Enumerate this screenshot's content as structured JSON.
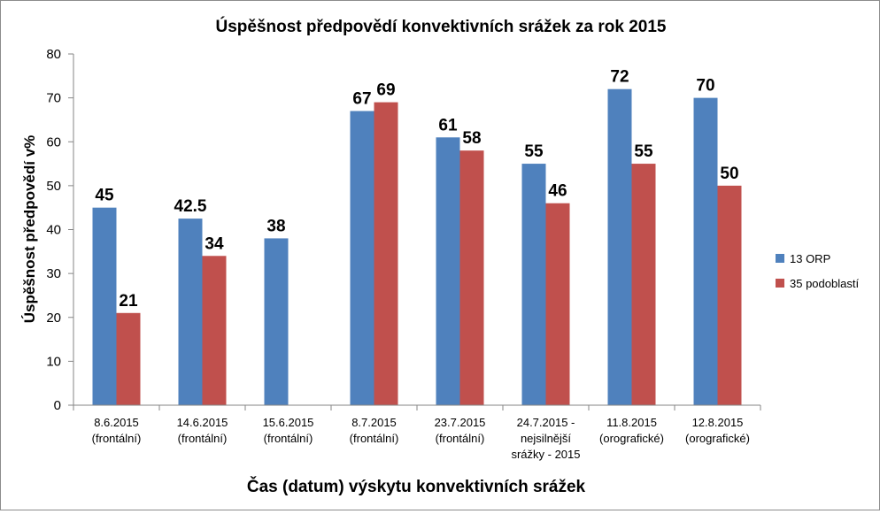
{
  "chart_data": {
    "type": "bar",
    "title": "Úspěšnost předpovědí konvektivních srážek za rok 2015",
    "xlabel": "Čas (datum) výskytu konvektivních srážek",
    "ylabel": "Úspěšnost předpovědí v%",
    "ylim": [
      0,
      80
    ],
    "yticks": [
      "0",
      "10",
      "20",
      "30",
      "40",
      "50",
      "60",
      "70",
      "80"
    ],
    "grid": false,
    "legend_position": "right",
    "categories": [
      [
        "8.6.2015",
        "(frontální)"
      ],
      [
        "14.6.2015",
        "(frontální)"
      ],
      [
        "15.6.2015",
        "(frontální)"
      ],
      [
        "8.7.2015",
        "(frontální)"
      ],
      [
        "23.7.2015",
        "(frontální)"
      ],
      [
        "24.7.2015 -",
        "nejsilnější",
        "srážky - 2015"
      ],
      [
        "11.8.2015",
        "(orografické)"
      ],
      [
        "12.8.2015",
        "(orografické)"
      ]
    ],
    "series": [
      {
        "name": "13 ORP",
        "color": "#4f81bd",
        "values": [
          45,
          42.5,
          38,
          67,
          61,
          55,
          72,
          70
        ],
        "labels": [
          "45",
          "42.5",
          "38",
          "67",
          "61",
          "55",
          "72",
          "70"
        ]
      },
      {
        "name": "35 podoblastí",
        "color": "#c0504d",
        "values": [
          21,
          34,
          null,
          69,
          58,
          46,
          55,
          50
        ],
        "labels": [
          "21",
          "34",
          "",
          "69",
          "58",
          "46",
          "55",
          "50"
        ]
      }
    ]
  }
}
